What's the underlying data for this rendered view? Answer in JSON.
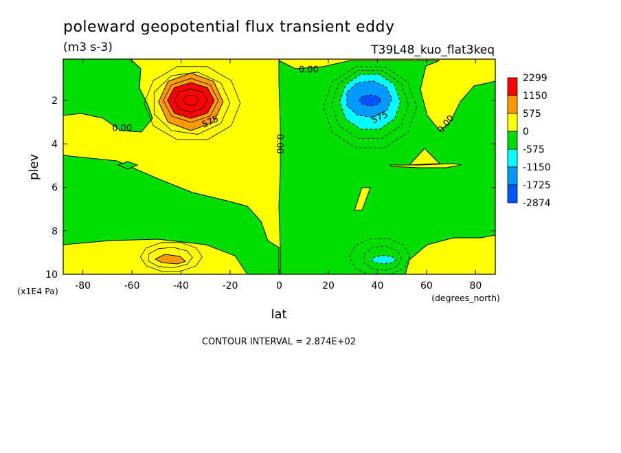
{
  "chart_data": {
    "type": "contour",
    "title": "poleward geopotential flux transient eddy",
    "units": "(m3 s-3)",
    "experiment": "T39L48_kuo_flat3keq",
    "xlabel": "lat",
    "xunits": "(degrees_north)",
    "ylabel": "plev",
    "yunits": "(x1E4 Pa)",
    "xlim": [
      -88,
      88
    ],
    "ylim": [
      0.1,
      10
    ],
    "y_inverted": true,
    "xticks": [
      -80,
      -60,
      -40,
      -20,
      0,
      20,
      40,
      60,
      80
    ],
    "yticks": [
      2,
      4,
      6,
      8,
      10
    ],
    "contour_interval_text": "CONTOUR INTERVAL = 2.874E+02",
    "contour_labels": [
      {
        "text": "0.00",
        "lat": 12,
        "plev": 0.6
      },
      {
        "text": "0.00",
        "lat": -64,
        "plev": 3.3
      },
      {
        "text": "575",
        "lat": -28,
        "plev": 3.0
      },
      {
        "text": "0.00",
        "lat": 0,
        "plev": 4.0
      },
      {
        "text": "575",
        "lat": 41,
        "plev": 2.8
      },
      {
        "text": "0.00",
        "lat": 68,
        "plev": 3.1
      }
    ],
    "features": [
      {
        "name": "southern positive maximum",
        "lat": -36,
        "plev": 2.0,
        "value_approx": 2300
      },
      {
        "name": "northern negative minimum",
        "lat": 37,
        "plev": 2.0,
        "value_approx": -2000
      },
      {
        "name": "southern lower positive maximum",
        "lat": -44,
        "plev": 9.2,
        "value_approx": 800
      },
      {
        "name": "northern lower negative minimum",
        "lat": 42,
        "plev": 9.2,
        "value_approx": -800
      }
    ],
    "legend": {
      "placement": "right",
      "levels": [
        {
          "label": "2299",
          "color": "#ff0000"
        },
        {
          "label": "1150",
          "color": "#ff9900"
        },
        {
          "label": "575",
          "color": "#ffff00"
        },
        {
          "label": "0",
          "color": "#00dd00"
        },
        {
          "label": "-575",
          "color": "#00ffff"
        },
        {
          "label": "-1150",
          "color": "#0099ff"
        },
        {
          "label": "-1725",
          "color": "#0055ff"
        },
        {
          "label": "-2874",
          "color": ""
        }
      ]
    },
    "colors": {
      "red": "#ff0000",
      "orange": "#ff9900",
      "yellow": "#ffff00",
      "green": "#00dd00",
      "cyan": "#00ffff",
      "lightblue": "#0099ff",
      "blue": "#0055ff"
    }
  }
}
